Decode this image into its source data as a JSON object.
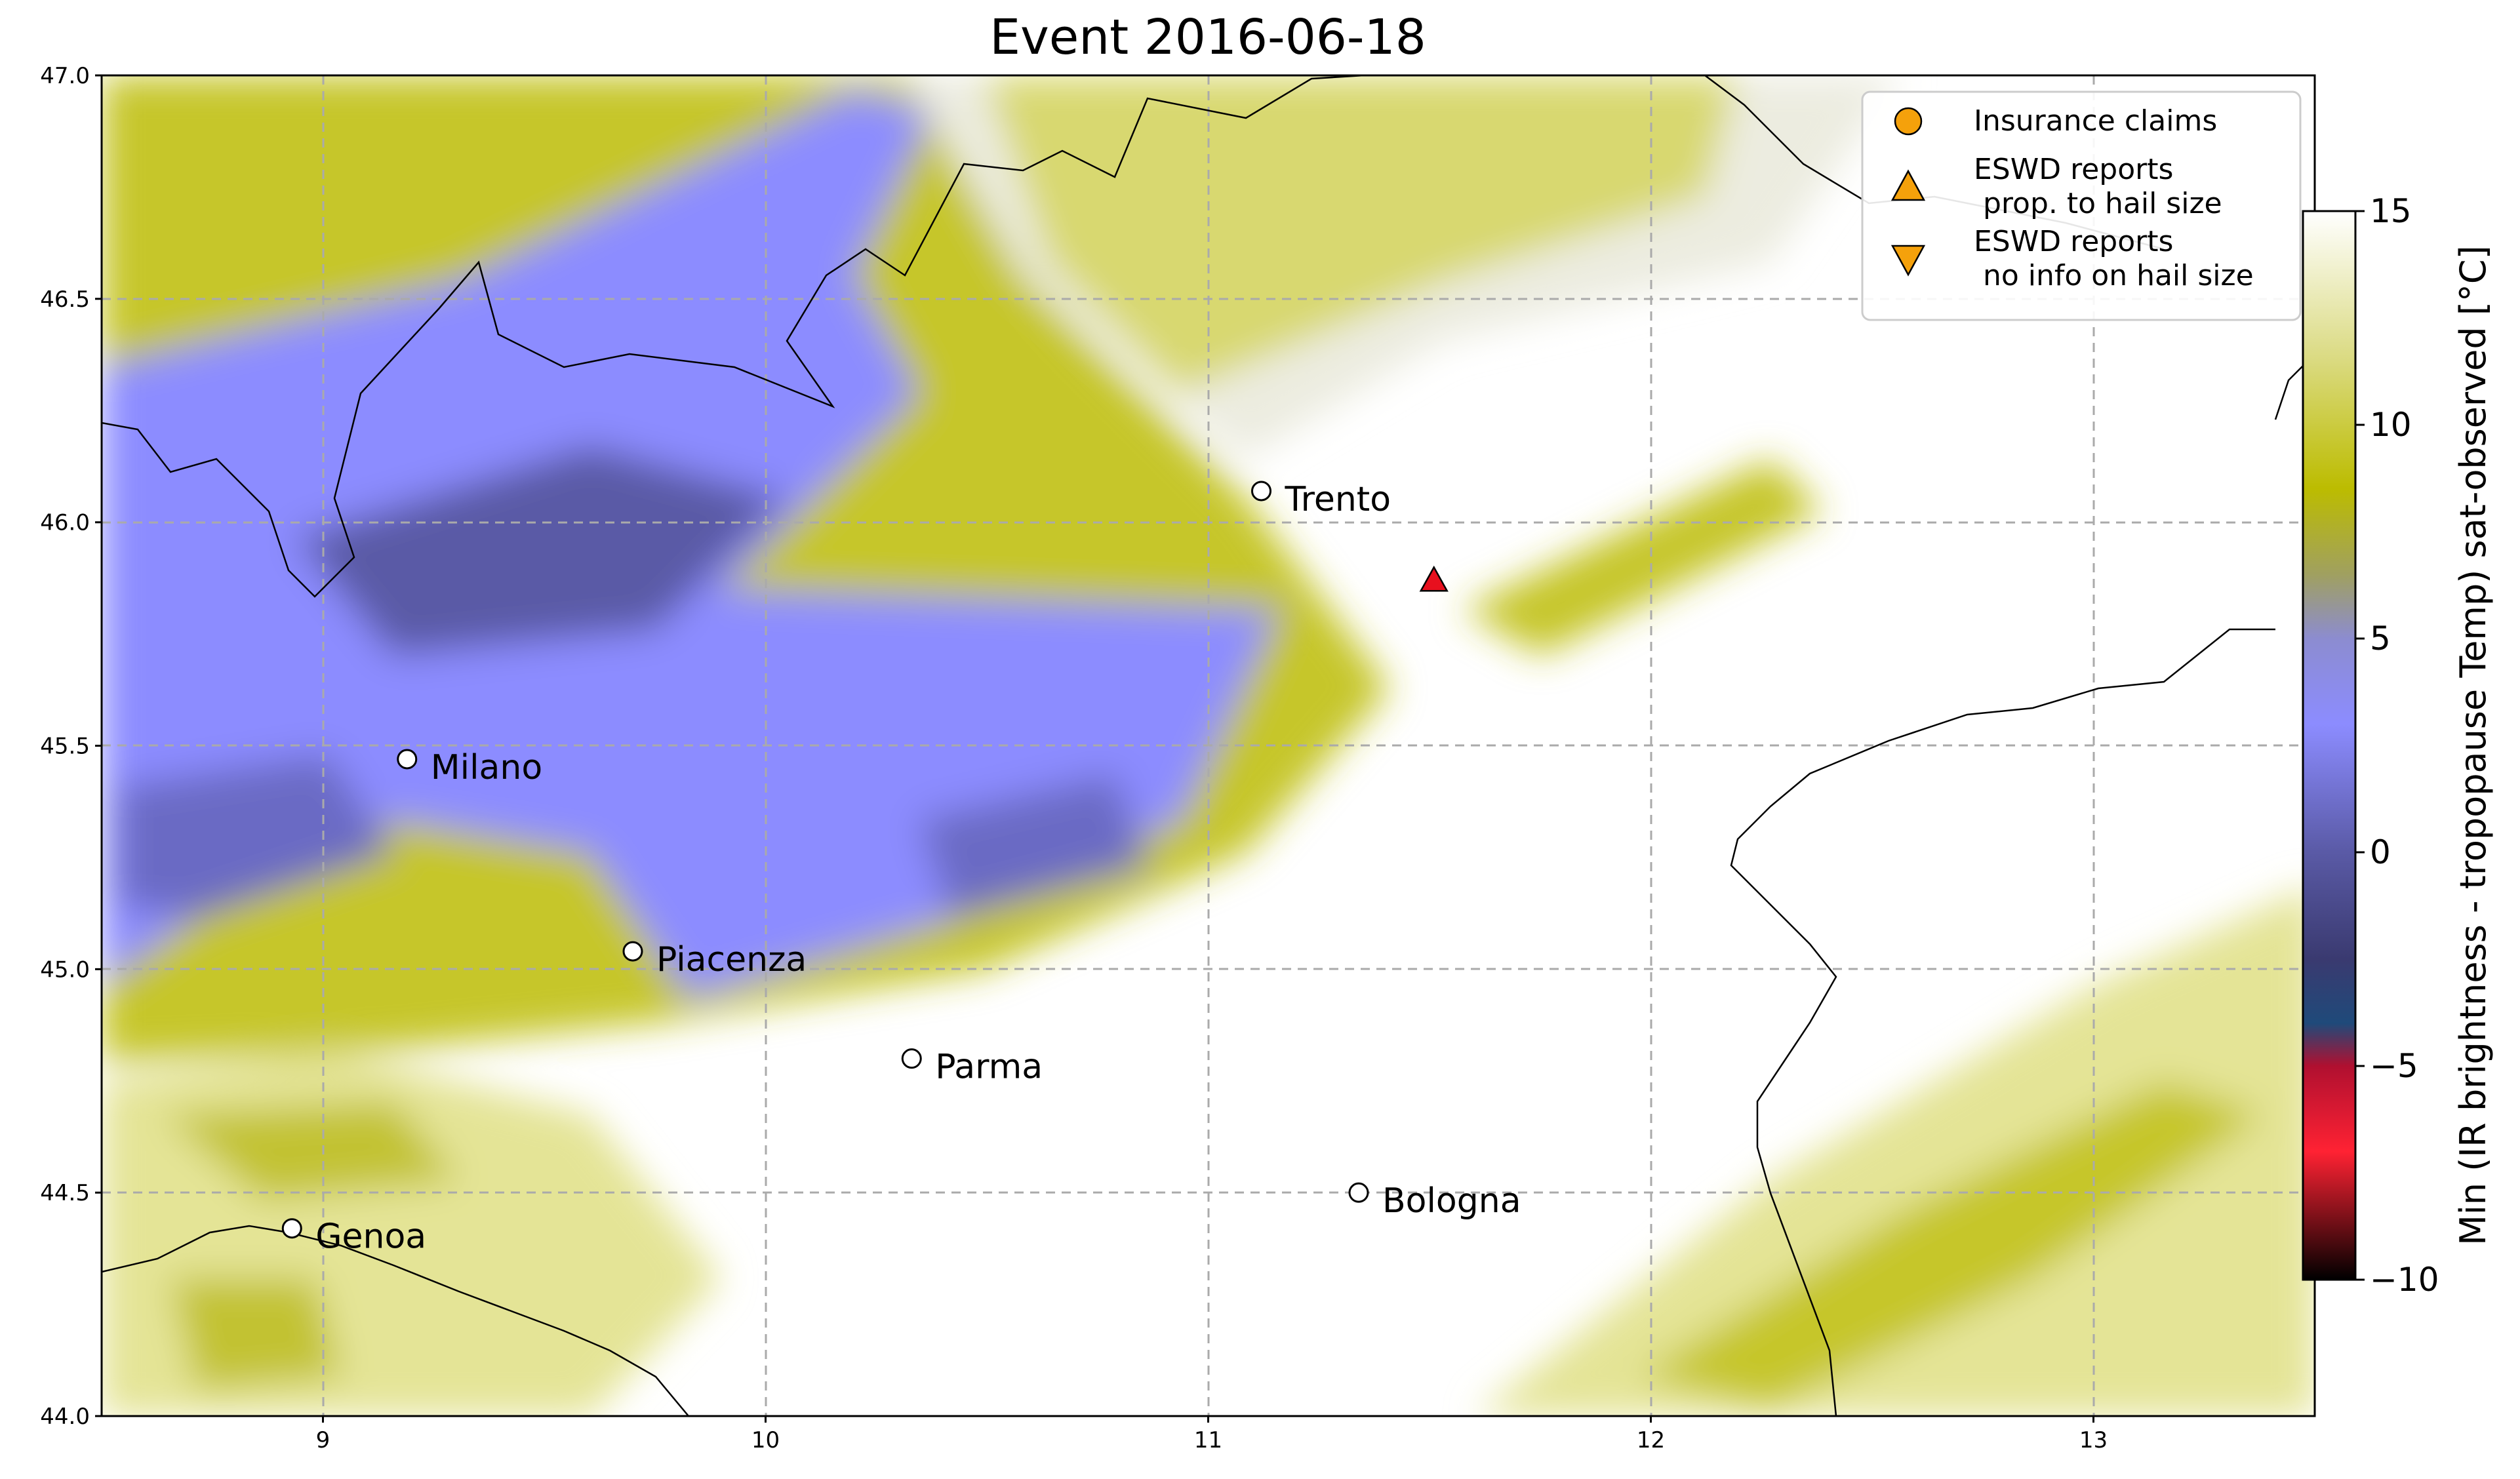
{
  "title": "Event 2016-06-18",
  "map": {
    "lon_range": [
      8.5,
      13.5
    ],
    "lat_range": [
      44.0,
      47.0
    ],
    "x_ticks": [
      "9",
      "10",
      "11",
      "12",
      "13"
    ],
    "y_ticks": [
      "44.0",
      "44.5",
      "45.0",
      "45.5",
      "46.0",
      "46.5",
      "47.0"
    ],
    "gridlines": true
  },
  "cities": [
    {
      "name": "Trento",
      "lon": 11.12,
      "lat": 46.07
    },
    {
      "name": "Milano",
      "lon": 9.19,
      "lat": 45.47
    },
    {
      "name": "Piacenza",
      "lon": 9.7,
      "lat": 45.04
    },
    {
      "name": "Parma",
      "lon": 10.33,
      "lat": 44.8
    },
    {
      "name": "Bologna",
      "lon": 11.34,
      "lat": 44.5
    },
    {
      "name": "Genoa",
      "lon": 8.93,
      "lat": 44.42
    }
  ],
  "eswd_reports": [
    {
      "type": "triangle-up",
      "lon": 11.51,
      "lat": 45.87,
      "color": "#e8101e"
    }
  ],
  "legend": {
    "position": "top-right",
    "entries": [
      {
        "marker": "circle",
        "color": "#f5a10b",
        "label": "Insurance claims"
      },
      {
        "marker": "triangle-up",
        "color": "#f5a10b",
        "label": "ESWD reports\n prop. to hail size"
      },
      {
        "marker": "triangle-down",
        "color": "#f5a10b",
        "label": "ESWD reports\n no info on hail size"
      }
    ]
  },
  "colorbar": {
    "label": "Min (IR brightness - tropopause Temp) sat-observed [°C]",
    "range": [
      -10,
      15
    ],
    "ticks": [
      "−10",
      "−5",
      "0",
      "5",
      "10",
      "15"
    ],
    "colors": [
      "#000000",
      "#ff2233",
      "#2a4a7a",
      "#5a5aa6",
      "#8c8cff",
      "#bcbc00",
      "#ffffff"
    ]
  },
  "field": {
    "description_colors": {
      "deep": "#5a5aa6",
      "blue": "#8c8cff",
      "olive": "#b8b800",
      "light": "#dede80",
      "pale": "#f4f4cc",
      "clear": "#ffffff"
    }
  }
}
